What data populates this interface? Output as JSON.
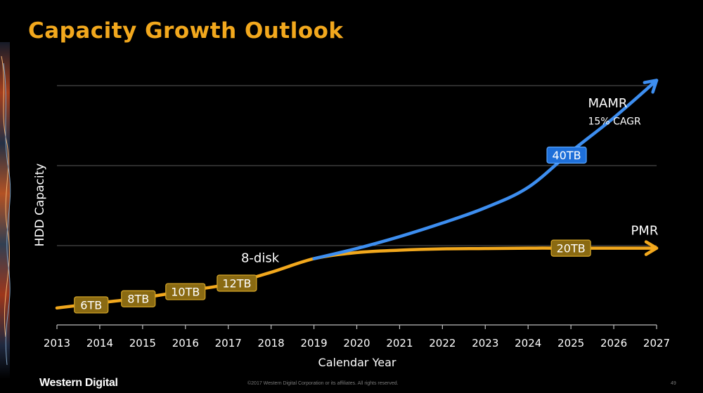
{
  "slide": {
    "title": "Capacity Growth Outlook",
    "brand": "Western Digital",
    "copyright": "©2017 Western Digital Corporation or its affiliates. All rights reserved.",
    "page_number": "49"
  },
  "colors": {
    "title": "#F2A81D",
    "pmr": "#F2A81D",
    "mamr": "#3D8EF0",
    "pmr_label_bg": "#8A6A12",
    "mamr_label_bg": "#1E6FD9",
    "grid": "#5a5a5a",
    "axis": "#bdbdbd",
    "text": "#ffffff"
  },
  "chart_data": {
    "type": "line",
    "xlabel": "Calendar Year",
    "ylabel": "HDD Capacity",
    "xlim": [
      2013,
      2027
    ],
    "x_ticks": [
      "2013",
      "2014",
      "2015",
      "2016",
      "2017",
      "2018",
      "2019",
      "2020",
      "2021",
      "2022",
      "2023",
      "2024",
      "2025",
      "2026",
      "2027"
    ],
    "grid": "horizontal",
    "series": [
      {
        "name": "PMR",
        "x": [
          2013,
          2014,
          2015,
          2016,
          2017,
          2018,
          2019,
          2020,
          2021,
          2022,
          2023,
          2024,
          2025,
          2026,
          2027
        ],
        "values": [
          5,
          6.5,
          8,
          10,
          12,
          15.5,
          19.5,
          21.3,
          22,
          22.4,
          22.5,
          22.6,
          22.6,
          22.6,
          22.6
        ]
      },
      {
        "name": "MAMR",
        "subtitle": "15% CAGR",
        "x": [
          2019,
          2020,
          2021,
          2022,
          2023,
          2024,
          2025,
          2026,
          2027
        ],
        "values": [
          19.5,
          22.5,
          26,
          30,
          34.5,
          40.5,
          51,
          61,
          72
        ]
      }
    ],
    "point_labels": [
      {
        "text": "6TB",
        "x": 2013.8,
        "value": 5.9,
        "series": "PMR"
      },
      {
        "text": "8TB",
        "x": 2014.9,
        "value": 7.7,
        "series": "PMR"
      },
      {
        "text": "10TB",
        "x": 2016.0,
        "value": 9.8,
        "series": "PMR"
      },
      {
        "text": "12TB",
        "x": 2017.2,
        "value": 12.3,
        "series": "PMR"
      },
      {
        "text": "20TB",
        "x": 2025.0,
        "value": 22.6,
        "series": "PMR"
      },
      {
        "text": "40TB",
        "x": 2024.9,
        "value": 50.0,
        "series": "MAMR"
      }
    ],
    "annotations": [
      {
        "text": "8-disk",
        "x": 2017.3,
        "value": 18.5
      },
      {
        "text": "PMR",
        "x": 2026.4,
        "value": 26.5
      },
      {
        "text": "MAMR",
        "x": 2025.4,
        "value": 64
      },
      {
        "text": "15% CAGR",
        "x": 2025.4,
        "value": 59
      }
    ]
  }
}
